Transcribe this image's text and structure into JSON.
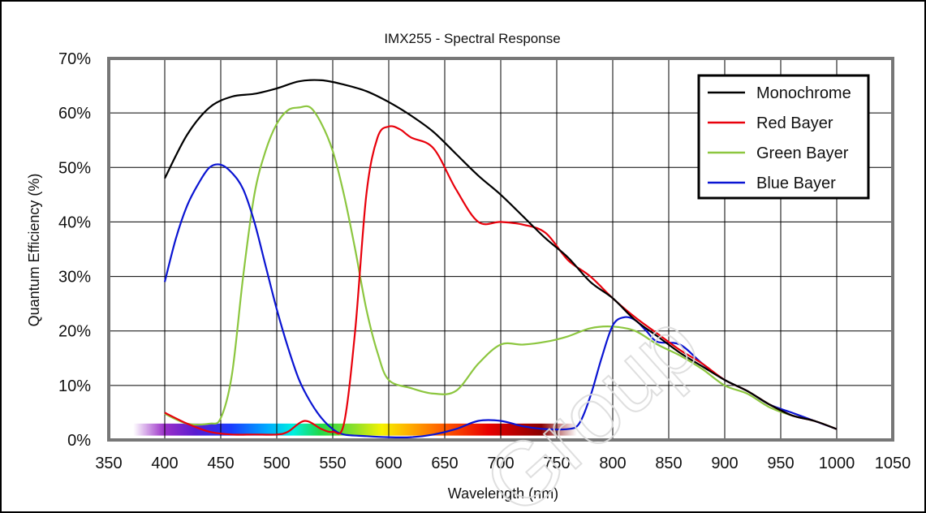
{
  "chart_data": {
    "type": "line",
    "title": "IMX255 - Spectral Response",
    "xlabel": "Wavelength (nm)",
    "ylabel": "Quantum Efficiency (%)",
    "xlim": [
      350,
      1050
    ],
    "ylim": [
      0,
      70
    ],
    "x_ticks": [
      "350",
      "400",
      "450",
      "500",
      "550",
      "600",
      "650",
      "700",
      "750",
      "800",
      "850",
      "900",
      "950",
      "1000",
      "1050"
    ],
    "y_ticks": [
      "0%",
      "10%",
      "20%",
      "30%",
      "40%",
      "50%",
      "60%",
      "70%"
    ],
    "grid": true,
    "legend_position": "top-right",
    "series": [
      {
        "name": "Monochrome",
        "color": "#000000",
        "points": [
          [
            400,
            48
          ],
          [
            420,
            56
          ],
          [
            440,
            61
          ],
          [
            460,
            63
          ],
          [
            480,
            63.5
          ],
          [
            500,
            64.5
          ],
          [
            520,
            65.8
          ],
          [
            540,
            66
          ],
          [
            560,
            65.2
          ],
          [
            580,
            64
          ],
          [
            600,
            62
          ],
          [
            620,
            59.5
          ],
          [
            640,
            56.5
          ],
          [
            660,
            52.5
          ],
          [
            680,
            48.5
          ],
          [
            700,
            45
          ],
          [
            720,
            41
          ],
          [
            740,
            37
          ],
          [
            760,
            33.5
          ],
          [
            780,
            29
          ],
          [
            800,
            26
          ],
          [
            820,
            22
          ],
          [
            840,
            19
          ],
          [
            860,
            16
          ],
          [
            880,
            13.5
          ],
          [
            900,
            11
          ],
          [
            920,
            9
          ],
          [
            940,
            6.5
          ],
          [
            960,
            4.5
          ],
          [
            980,
            3.5
          ],
          [
            1000,
            2
          ]
        ]
      },
      {
        "name": "Red Bayer",
        "color": "#e8000b",
        "points": [
          [
            400,
            5
          ],
          [
            420,
            3
          ],
          [
            440,
            1.5
          ],
          [
            460,
            1
          ],
          [
            480,
            1
          ],
          [
            500,
            1
          ],
          [
            510,
            1.5
          ],
          [
            525,
            3.5
          ],
          [
            540,
            2
          ],
          [
            550,
            1.5
          ],
          [
            560,
            3
          ],
          [
            570,
            20
          ],
          [
            580,
            45
          ],
          [
            590,
            55.5
          ],
          [
            600,
            57.5
          ],
          [
            610,
            57
          ],
          [
            620,
            55.5
          ],
          [
            640,
            53.5
          ],
          [
            660,
            46
          ],
          [
            680,
            40
          ],
          [
            700,
            40
          ],
          [
            720,
            39.5
          ],
          [
            740,
            38
          ],
          [
            760,
            33
          ],
          [
            780,
            30
          ],
          [
            800,
            26
          ],
          [
            820,
            22.5
          ],
          [
            840,
            19.5
          ],
          [
            860,
            16.5
          ],
          [
            880,
            14
          ],
          [
            900,
            11
          ],
          [
            920,
            9
          ],
          [
            940,
            6.5
          ],
          [
            960,
            4.5
          ],
          [
            980,
            3.5
          ],
          [
            1000,
            2
          ]
        ]
      },
      {
        "name": "Green Bayer",
        "color": "#8cc63f",
        "points": [
          [
            400,
            4.8
          ],
          [
            420,
            3
          ],
          [
            440,
            3
          ],
          [
            450,
            4
          ],
          [
            460,
            12
          ],
          [
            470,
            30
          ],
          [
            480,
            45
          ],
          [
            490,
            53
          ],
          [
            500,
            58
          ],
          [
            510,
            60.5
          ],
          [
            520,
            61
          ],
          [
            530,
            61
          ],
          [
            540,
            58
          ],
          [
            550,
            53
          ],
          [
            560,
            45
          ],
          [
            570,
            35
          ],
          [
            580,
            24
          ],
          [
            590,
            16
          ],
          [
            600,
            11
          ],
          [
            620,
            9.5
          ],
          [
            640,
            8.5
          ],
          [
            660,
            9
          ],
          [
            680,
            14
          ],
          [
            700,
            17.5
          ],
          [
            720,
            17.5
          ],
          [
            740,
            18
          ],
          [
            760,
            19
          ],
          [
            780,
            20.5
          ],
          [
            800,
            20.8
          ],
          [
            820,
            20
          ],
          [
            840,
            17.5
          ],
          [
            860,
            15.5
          ],
          [
            880,
            13
          ],
          [
            900,
            10
          ],
          [
            920,
            8.5
          ],
          [
            940,
            6
          ],
          [
            960,
            4.5
          ],
          [
            980,
            3.5
          ],
          [
            1000,
            2
          ]
        ]
      },
      {
        "name": "Blue Bayer",
        "color": "#0a14d2",
        "points": [
          [
            400,
            29
          ],
          [
            410,
            37
          ],
          [
            420,
            43
          ],
          [
            430,
            47
          ],
          [
            440,
            50
          ],
          [
            450,
            50.5
          ],
          [
            460,
            49
          ],
          [
            470,
            46
          ],
          [
            480,
            40
          ],
          [
            490,
            32
          ],
          [
            500,
            24
          ],
          [
            510,
            17
          ],
          [
            520,
            11
          ],
          [
            530,
            7
          ],
          [
            540,
            4
          ],
          [
            550,
            2
          ],
          [
            560,
            1
          ],
          [
            580,
            0.7
          ],
          [
            600,
            0.5
          ],
          [
            620,
            0.5
          ],
          [
            640,
            1
          ],
          [
            660,
            2
          ],
          [
            680,
            3.5
          ],
          [
            700,
            3.5
          ],
          [
            720,
            2.5
          ],
          [
            740,
            2
          ],
          [
            760,
            2
          ],
          [
            770,
            3
          ],
          [
            780,
            8
          ],
          [
            790,
            15
          ],
          [
            800,
            21
          ],
          [
            810,
            22.5
          ],
          [
            820,
            22
          ],
          [
            830,
            20
          ],
          [
            840,
            18
          ],
          [
            860,
            17.5
          ],
          [
            880,
            14
          ],
          [
            900,
            11
          ],
          [
            920,
            9
          ],
          [
            940,
            6.5
          ],
          [
            960,
            5
          ],
          [
            980,
            3.5
          ],
          [
            1000,
            2
          ]
        ]
      }
    ]
  },
  "watermark_text": "Gmbh Group .com"
}
